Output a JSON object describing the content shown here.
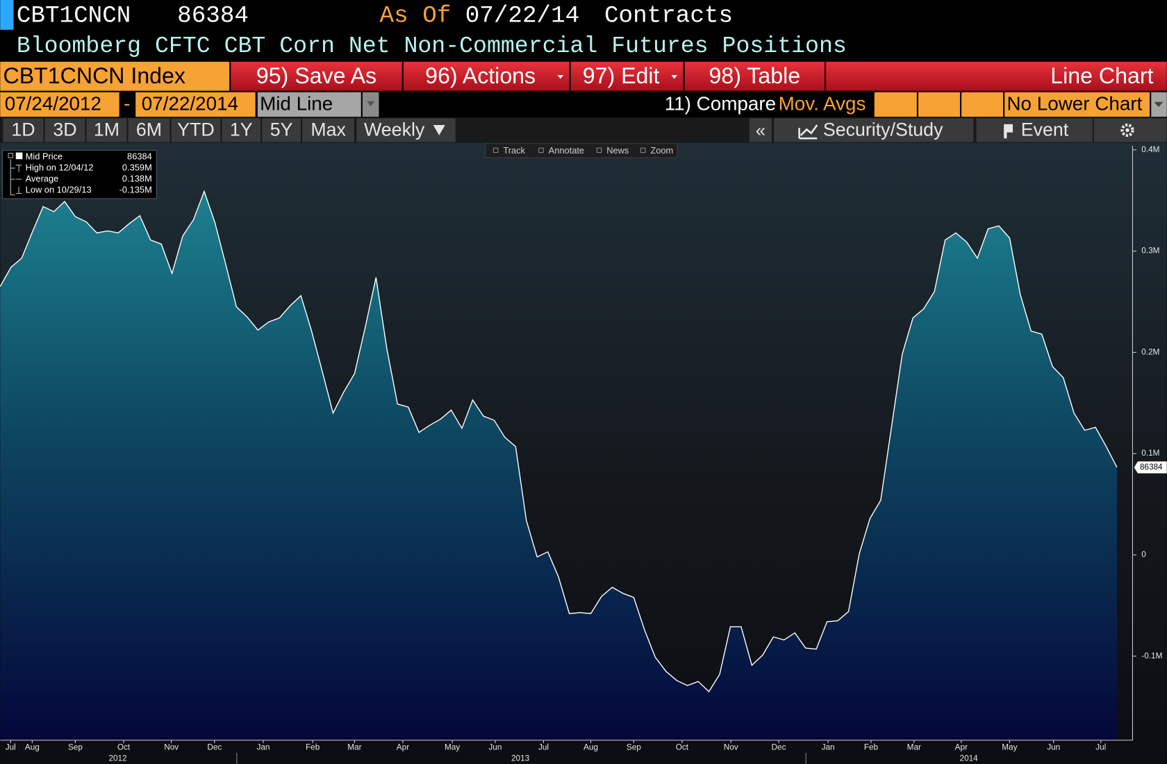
{
  "header": {
    "ticker": "CBT1CNCN",
    "price": "86384",
    "as_of_label": "As Of",
    "as_of_date": "07/22/14",
    "units": "Contracts",
    "title": "Bloomberg CFTC CBT Corn Net Non-Commercial Futures Positions"
  },
  "toolbar": {
    "security": "CBT1CNCN Index",
    "buttons": [
      "95) Save As",
      "96) Actions",
      "97) Edit",
      "98) Table"
    ],
    "chart_type": "Line Chart"
  },
  "range": {
    "start": "07/24/2012",
    "separator": "-",
    "end": "07/22/2014",
    "mode": "Mid Line",
    "compare": "11) Compare",
    "mov_avgs": "Mov. Avgs",
    "lower_chart": "No Lower Chart"
  },
  "periods": [
    "1D",
    "3D",
    "1M",
    "6M",
    "YTD",
    "1Y",
    "5Y",
    "Max"
  ],
  "frequency": "Weekly",
  "tools": {
    "collapse": "«",
    "security_study": "Security/Study",
    "event": "Event"
  },
  "chart_tools": [
    "Track",
    "Annotate",
    "News",
    "Zoom"
  ],
  "legend": [
    {
      "label": "Mid Price",
      "value": "86384"
    },
    {
      "label": "High on 12/04/12",
      "value": "0.359M"
    },
    {
      "label": "Average",
      "value": "0.138M"
    },
    {
      "label": "Low on 10/29/13",
      "value": "-0.135M"
    }
  ],
  "chart_data": {
    "type": "line",
    "series": [
      {
        "name": "Mid Price",
        "color": "#ffffff",
        "values": [
          265000,
          284000,
          293000,
          319000,
          344000,
          339000,
          349000,
          334000,
          329000,
          318000,
          320000,
          318000,
          327000,
          335000,
          311000,
          307000,
          278000,
          315000,
          331000,
          359000,
          328000,
          287000,
          245000,
          235000,
          222000,
          230000,
          234000,
          246000,
          256000,
          221000,
          181000,
          140000,
          161000,
          179000,
          225000,
          274000,
          204000,
          149000,
          146000,
          121000,
          128000,
          134000,
          143000,
          125000,
          153000,
          137000,
          133000,
          116000,
          107000,
          34000,
          -2000,
          3000,
          -22000,
          -58000,
          -57000,
          -58000,
          -41000,
          -32000,
          -38000,
          -42000,
          -74000,
          -101000,
          -115000,
          -124000,
          -129000,
          -125000,
          -135000,
          -118000,
          -71000,
          -71000,
          -109000,
          -99000,
          -81000,
          -84000,
          -77000,
          -92000,
          -93000,
          -66000,
          -65000,
          -56000,
          1000,
          36000,
          54000,
          126000,
          198000,
          234000,
          243000,
          260000,
          311000,
          318000,
          309000,
          293000,
          322000,
          325000,
          313000,
          257000,
          221000,
          218000,
          186000,
          175000,
          140000,
          123000,
          126000,
          107000,
          86384
        ]
      }
    ],
    "end_label": "86384",
    "xlim": [
      0,
      104
    ],
    "xticks": [
      {
        "value": 0.97,
        "label": "Jul"
      },
      {
        "value": 2.98,
        "label": "Aug"
      },
      {
        "value": 7.0,
        "label": "Sep"
      },
      {
        "value": 11.5,
        "label": "Oct"
      },
      {
        "value": 15.94,
        "label": "Nov"
      },
      {
        "value": 19.96,
        "label": "Dec"
      },
      {
        "value": 24.5,
        "label": "Jan"
      },
      {
        "value": 29.1,
        "label": "Feb"
      },
      {
        "value": 33.0,
        "label": "Mar"
      },
      {
        "value": 37.5,
        "label": "Apr"
      },
      {
        "value": 42.1,
        "label": "May"
      },
      {
        "value": 46.1,
        "label": "Jun"
      },
      {
        "value": 50.6,
        "label": "Jul"
      },
      {
        "value": 55.0,
        "label": "Aug"
      },
      {
        "value": 59.0,
        "label": "Sep"
      },
      {
        "value": 63.5,
        "label": "Oct"
      },
      {
        "value": 68.05,
        "label": "Nov"
      },
      {
        "value": 72.5,
        "label": "Dec"
      },
      {
        "value": 77.1,
        "label": "Jan"
      },
      {
        "value": 81.1,
        "label": "Feb"
      },
      {
        "value": 85.1,
        "label": "Mar"
      },
      {
        "value": 89.5,
        "label": "Apr"
      },
      {
        "value": 94.0,
        "label": "May"
      },
      {
        "value": 98.1,
        "label": "Jun"
      },
      {
        "value": 102.5,
        "label": "Jul"
      }
    ],
    "years": [
      {
        "value": 10.95,
        "label": "2012"
      },
      {
        "value": 48.44,
        "label": "2013"
      },
      {
        "value": 90.2,
        "label": "2014"
      }
    ],
    "ylim": [
      -183000,
      404000
    ],
    "yticks": [
      {
        "value": -100000,
        "label": "-0.1M"
      },
      0,
      {
        "value": 100000,
        "label": "0.1M"
      },
      {
        "value": 200000,
        "label": "0.2M"
      },
      {
        "value": 300000,
        "label": "0.3M"
      },
      {
        "value": 400000,
        "label": "0.4M"
      }
    ],
    "area_fill": true,
    "grid": false
  }
}
